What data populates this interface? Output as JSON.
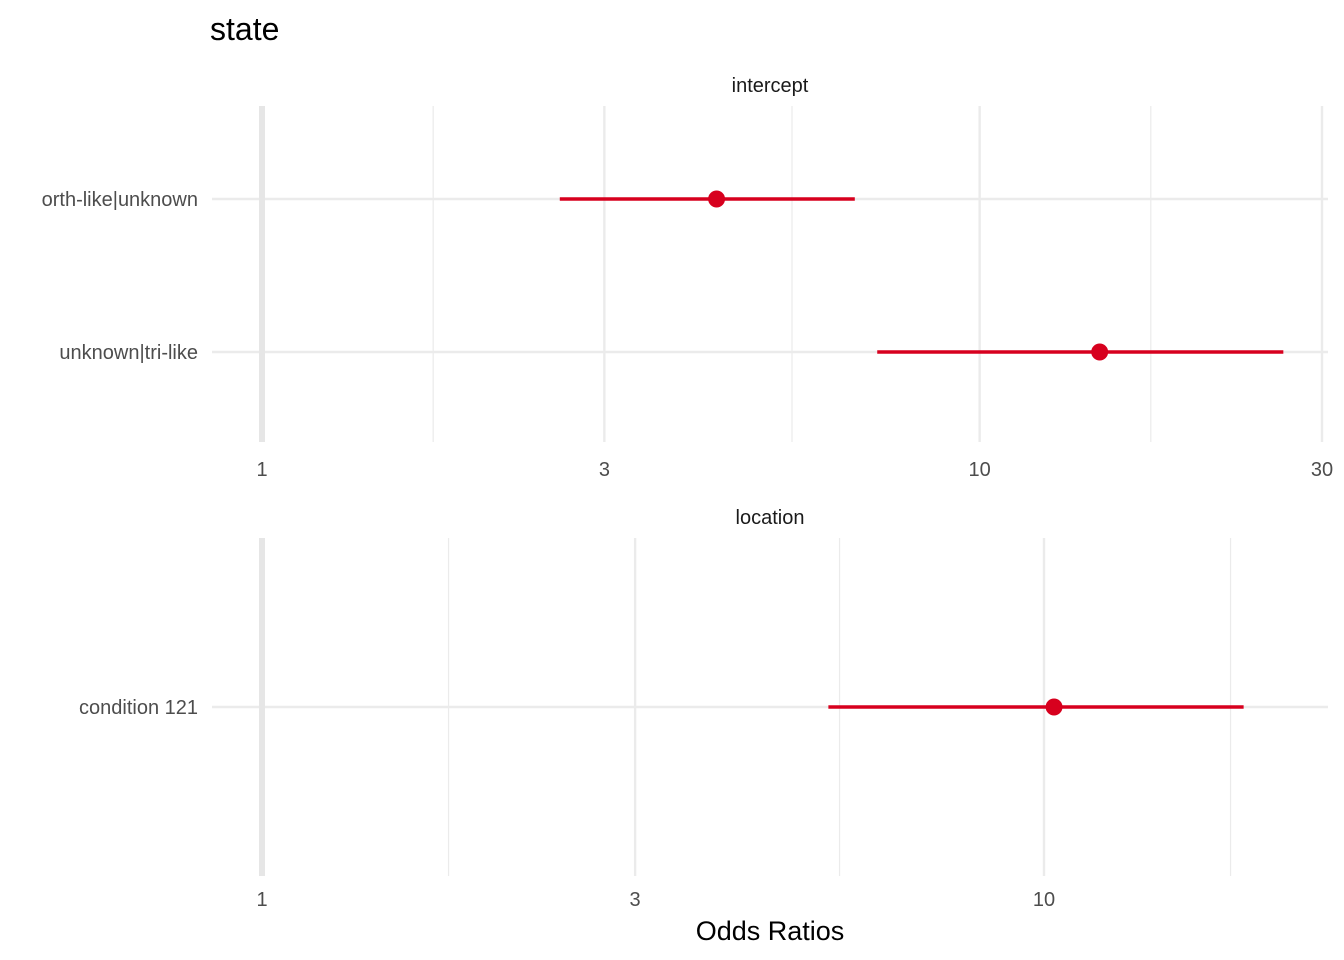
{
  "chart_data": {
    "type": "forest",
    "title": "state",
    "xlabel": "Odds Ratios",
    "x_scale": "log",
    "reference_line": 1,
    "colors": {
      "point": "#d7001e",
      "grid": "#ebebeb",
      "reference": "#e6e6e6"
    },
    "panels": [
      {
        "name": "intercept",
        "xlim": [
          1,
          30
        ],
        "x_ticks": [
          1,
          3,
          10,
          30
        ],
        "x_tick_labels": [
          "1",
          "3",
          "10",
          "30"
        ],
        "x_minor": [
          1.7320508,
          5.4772256,
          17.3205081
        ],
        "terms": [
          {
            "label": "orth-like|unknown",
            "estimate": 4.3,
            "ci_low": 2.6,
            "ci_high": 6.7
          },
          {
            "label": "unknown|tri-like",
            "estimate": 14.7,
            "ci_low": 7.2,
            "ci_high": 26.5
          }
        ]
      },
      {
        "name": "location",
        "xlim": [
          1,
          18
        ],
        "x_ticks": [
          1,
          3,
          10
        ],
        "x_tick_labels": [
          "1",
          "3",
          "10"
        ],
        "x_minor": [
          1.7320508,
          5.4772256
        ],
        "x_extra_minor": [
          17.3205081
        ],
        "terms": [
          {
            "label": "condition 121",
            "estimate": 10.3,
            "ci_low": 5.3,
            "ci_high": 18.0
          }
        ]
      }
    ]
  }
}
